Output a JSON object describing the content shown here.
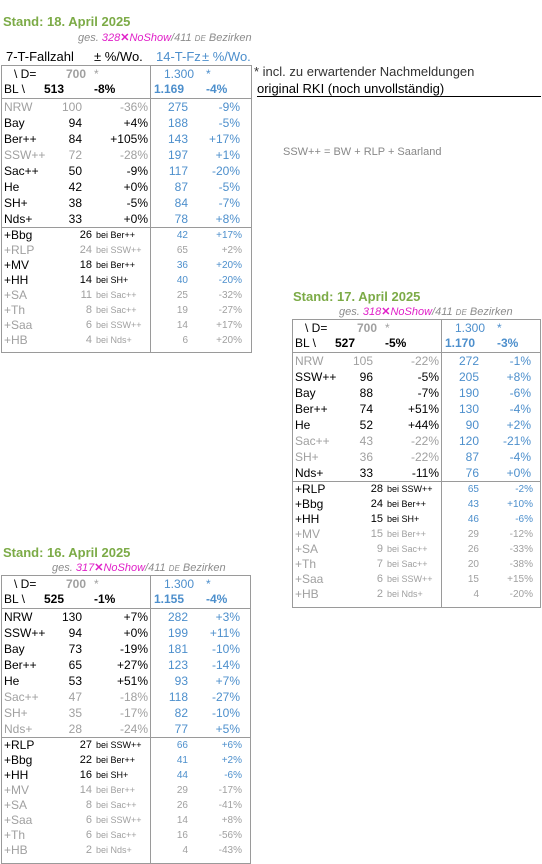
{
  "colors": {
    "stand": "#7cab47",
    "noshow": "#e020c8",
    "blue": "#4d8fcc",
    "grey": "#a0a0a0"
  },
  "notes": {
    "incl": "* incl. zu erwartender Nachmeldungen",
    "rki": "original RKI (noch unvollständig)",
    "ssw": "SSW++ = BW + RLP + Saarland"
  },
  "top": {
    "stand": "Stand: 18. April 2025",
    "ges": "ges.",
    "ges_num": "328",
    "noshow": "NoShow",
    "total": "/411",
    "de": "DE",
    "bez": "Bezirken",
    "col1_title": "7-T-Fallzahl",
    "col2_title": "± %/Wo.",
    "col3_title": "14-T-Fz",
    "col4_title": "± %/Wo.",
    "d_label": "\\ D=",
    "d_700": "700",
    "d_star": "*",
    "d_1300": "1.300",
    "d_star2": "*",
    "bl_label": "BL \\",
    "bl_7t": "513",
    "bl_pct": "-8%",
    "bl_14t": "1.169",
    "bl_14pct": "-4%",
    "rows": [
      {
        "name": "NRW",
        "v7": "100",
        "p7": "-36%",
        "v14": "275",
        "p14": "-9%",
        "grey": true
      },
      {
        "name": "Bay",
        "v7": "94",
        "p7": "+4%",
        "v14": "188",
        "p14": "-5%",
        "grey": false
      },
      {
        "name": "Ber++",
        "v7": "84",
        "p7": "+105%",
        "v14": "143",
        "p14": "+17%",
        "grey": false
      },
      {
        "name": "SSW++",
        "v7": "72",
        "p7": "-28%",
        "v14": "197",
        "p14": "+1%",
        "grey": true
      },
      {
        "name": "Sac++",
        "v7": "50",
        "p7": "-9%",
        "v14": "117",
        "p14": "-20%",
        "grey": false
      },
      {
        "name": "He",
        "v7": "42",
        "p7": "+0%",
        "v14": "87",
        "p14": "-5%",
        "grey": false
      },
      {
        "name": "SH+",
        "v7": "38",
        "p7": "-5%",
        "v14": "84",
        "p14": "-7%",
        "grey": false
      },
      {
        "name": "Nds+",
        "v7": "33",
        "p7": "+0%",
        "v14": "78",
        "p14": "+8%",
        "grey": false
      }
    ],
    "subrows": [
      {
        "name": "+Bbg",
        "v7": "26",
        "bei": "bei Ber++",
        "v14": "42",
        "p14": "+17%",
        "grey": false
      },
      {
        "name": "+RLP",
        "v7": "24",
        "bei": "bei SSW++",
        "v14": "65",
        "p14": "+2%",
        "grey": true
      },
      {
        "name": "+MV",
        "v7": "18",
        "bei": "bei Ber++",
        "v14": "36",
        "p14": "+20%",
        "grey": false
      },
      {
        "name": "+HH",
        "v7": "14",
        "bei": "bei SH+",
        "v14": "40",
        "p14": "-20%",
        "grey": false
      },
      {
        "name": "+SA",
        "v7": "11",
        "bei": "bei Sac++",
        "v14": "25",
        "p14": "-32%",
        "grey": true
      },
      {
        "name": "+Th",
        "v7": "8",
        "bei": "bei Sac++",
        "v14": "19",
        "p14": "-27%",
        "grey": true
      },
      {
        "name": "+Saa",
        "v7": "6",
        "bei": "bei SSW++",
        "v14": "14",
        "p14": "+17%",
        "grey": true
      },
      {
        "name": "+HB",
        "v7": "4",
        "bei": "bei Nds+",
        "v14": "6",
        "p14": "+20%",
        "grey": true
      }
    ]
  },
  "mid": {
    "stand": "Stand: 17. April 2025",
    "ges": "ges.",
    "ges_num": "318",
    "noshow": "NoShow",
    "total": "/411",
    "de": "DE",
    "bez": "Bezirken",
    "d_label": "\\ D=",
    "d_700": "700",
    "d_star": "*",
    "d_1300": "1.300",
    "d_star2": "*",
    "bl_label": "BL \\",
    "bl_7t": "527",
    "bl_pct": "-5%",
    "bl_14t": "1.170",
    "bl_14pct": "-3%",
    "rows": [
      {
        "name": "NRW",
        "v7": "105",
        "p7": "-22%",
        "v14": "272",
        "p14": "-1%",
        "grey": true
      },
      {
        "name": "SSW++",
        "v7": "96",
        "p7": "-5%",
        "v14": "205",
        "p14": "+8%",
        "grey": false
      },
      {
        "name": "Bay",
        "v7": "88",
        "p7": "-7%",
        "v14": "190",
        "p14": "-6%",
        "grey": false
      },
      {
        "name": "Ber++",
        "v7": "74",
        "p7": "+51%",
        "v14": "130",
        "p14": "-4%",
        "grey": false
      },
      {
        "name": "He",
        "v7": "52",
        "p7": "+44%",
        "v14": "90",
        "p14": "+2%",
        "grey": false
      },
      {
        "name": "Sac++",
        "v7": "43",
        "p7": "-22%",
        "v14": "120",
        "p14": "-21%",
        "grey": true
      },
      {
        "name": "SH+",
        "v7": "36",
        "p7": "-22%",
        "v14": "87",
        "p14": "-4%",
        "grey": true
      },
      {
        "name": "Nds+",
        "v7": "33",
        "p7": "-11%",
        "v14": "76",
        "p14": "+0%",
        "grey": false
      }
    ],
    "subrows": [
      {
        "name": "+RLP",
        "v7": "28",
        "bei": "bei SSW++",
        "v14": "65",
        "p14": "-2%",
        "grey": false
      },
      {
        "name": "+Bbg",
        "v7": "24",
        "bei": "bei Ber++",
        "v14": "43",
        "p14": "+10%",
        "grey": false
      },
      {
        "name": "+HH",
        "v7": "15",
        "bei": "bei SH+",
        "v14": "46",
        "p14": "-6%",
        "grey": false
      },
      {
        "name": "+MV",
        "v7": "15",
        "bei": "bei Ber++",
        "v14": "29",
        "p14": "-12%",
        "grey": true
      },
      {
        "name": "+SA",
        "v7": "9",
        "bei": "bei Sac++",
        "v14": "26",
        "p14": "-33%",
        "grey": true
      },
      {
        "name": "+Th",
        "v7": "7",
        "bei": "bei Sac++",
        "v14": "20",
        "p14": "-38%",
        "grey": true
      },
      {
        "name": "+Saa",
        "v7": "6",
        "bei": "bei SSW++",
        "v14": "15",
        "p14": "+15%",
        "grey": true
      },
      {
        "name": "+HB",
        "v7": "2",
        "bei": "bei Nds+",
        "v14": "4",
        "p14": "-20%",
        "grey": true
      }
    ]
  },
  "bot": {
    "stand": "Stand: 16. April 2025",
    "ges": "ges.",
    "ges_num": "317",
    "noshow": "NoShow",
    "total": "/411",
    "de": "DE",
    "bez": "Bezirken",
    "d_label": "\\ D=",
    "d_700": "700",
    "d_star": "*",
    "d_1300": "1.300",
    "d_star2": "*",
    "bl_label": "BL \\",
    "bl_7t": "525",
    "bl_pct": "-1%",
    "bl_14t": "1.155",
    "bl_14pct": "-4%",
    "rows": [
      {
        "name": "NRW",
        "v7": "130",
        "p7": "+7%",
        "v14": "282",
        "p14": "+3%",
        "grey": false
      },
      {
        "name": "SSW++",
        "v7": "94",
        "p7": "+0%",
        "v14": "199",
        "p14": "+11%",
        "grey": false
      },
      {
        "name": "Bay",
        "v7": "73",
        "p7": "-19%",
        "v14": "181",
        "p14": "-10%",
        "grey": false
      },
      {
        "name": "Ber++",
        "v7": "65",
        "p7": "+27%",
        "v14": "123",
        "p14": "-14%",
        "grey": false
      },
      {
        "name": "He",
        "v7": "53",
        "p7": "+51%",
        "v14": "93",
        "p14": "+7%",
        "grey": false
      },
      {
        "name": "Sac++",
        "v7": "47",
        "p7": "-18%",
        "v14": "118",
        "p14": "-27%",
        "grey": true
      },
      {
        "name": "SH+",
        "v7": "35",
        "p7": "-17%",
        "v14": "82",
        "p14": "-10%",
        "grey": true
      },
      {
        "name": "Nds+",
        "v7": "28",
        "p7": "-24%",
        "v14": "77",
        "p14": "+5%",
        "grey": true
      }
    ],
    "subrows": [
      {
        "name": "+RLP",
        "v7": "27",
        "bei": "bei SSW++",
        "v14": "66",
        "p14": "+6%",
        "grey": false
      },
      {
        "name": "+Bbg",
        "v7": "22",
        "bei": "bei Ber++",
        "v14": "41",
        "p14": "+2%",
        "grey": false
      },
      {
        "name": "+HH",
        "v7": "16",
        "bei": "bei SH+",
        "v14": "44",
        "p14": "-6%",
        "grey": false
      },
      {
        "name": "+MV",
        "v7": "14",
        "bei": "bei Ber++",
        "v14": "29",
        "p14": "-17%",
        "grey": true
      },
      {
        "name": "+SA",
        "v7": "8",
        "bei": "bei Sac++",
        "v14": "26",
        "p14": "-41%",
        "grey": true
      },
      {
        "name": "+Saa",
        "v7": "6",
        "bei": "bei SSW++",
        "v14": "14",
        "p14": "+8%",
        "grey": true
      },
      {
        "name": "+Th",
        "v7": "6",
        "bei": "bei Sac++",
        "v14": "16",
        "p14": "-56%",
        "grey": true
      },
      {
        "name": "+HB",
        "v7": "2",
        "bei": "bei Nds+",
        "v14": "4",
        "p14": "-43%",
        "grey": true
      }
    ]
  }
}
